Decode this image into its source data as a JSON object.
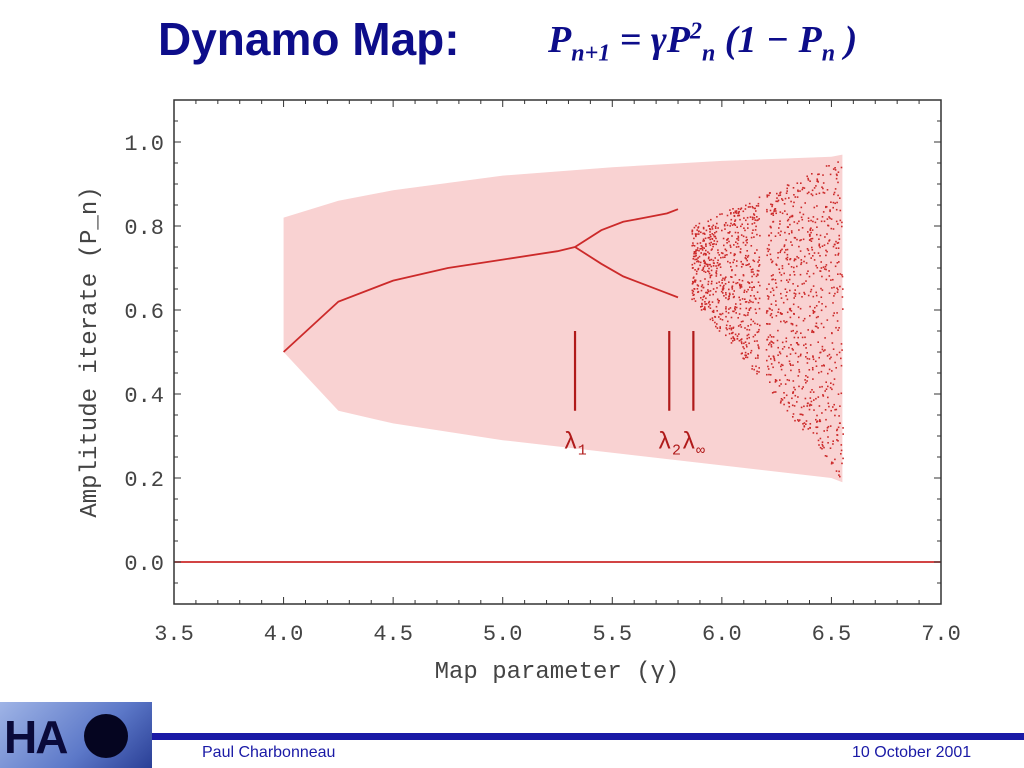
{
  "slide": {
    "title": "Dynamo Map:",
    "formula": {
      "lhs_var": "P",
      "lhs_sub": "n+1",
      "equals": "=",
      "gamma": "γ",
      "rhs_var": "P",
      "rhs_sup": "2",
      "rhs_sub": "n",
      "paren_open": "(1",
      "minus": "−",
      "rhs_var2": "P",
      "rhs_sub2": "n",
      "paren_close": ")"
    },
    "footer": {
      "author": "Paul Charbonneau",
      "date": "10 October 2001",
      "logo_text": "HA"
    }
  },
  "colors": {
    "title": "#0d0d8a",
    "envelope_fill": "#f9d2d2",
    "orbit": "#cc2a2a",
    "footer_bar": "#1a1aa6"
  },
  "chart_data": {
    "type": "scatter",
    "title": "",
    "xlabel": "Map parameter (γ)",
    "ylabel": "Amplitude iterate (P_n)",
    "xlim": [
      3.5,
      7.0
    ],
    "ylim": [
      -0.1,
      1.1
    ],
    "x_ticks": [
      "3.5",
      "4.0",
      "4.5",
      "5.0",
      "5.5",
      "6.0",
      "6.5",
      "7.0"
    ],
    "y_ticks": [
      "0.0",
      "0.2",
      "0.4",
      "0.6",
      "0.8",
      "1.0"
    ],
    "grid": false,
    "series": [
      {
        "kind": "fixed_point_stable",
        "x": [
          4.0,
          4.25,
          4.5,
          4.75,
          5.0,
          5.25,
          5.33
        ],
        "y": [
          0.5,
          0.62,
          0.67,
          0.7,
          0.72,
          0.74,
          0.75
        ]
      },
      {
        "kind": "period_2_upper",
        "x": [
          5.33,
          5.45,
          5.55,
          5.65,
          5.75,
          5.8
        ],
        "y": [
          0.75,
          0.79,
          0.81,
          0.82,
          0.83,
          0.84
        ]
      },
      {
        "kind": "period_2_lower",
        "x": [
          5.33,
          5.45,
          5.55,
          5.65,
          5.75,
          5.8
        ],
        "y": [
          0.75,
          0.71,
          0.68,
          0.66,
          0.64,
          0.63
        ]
      },
      {
        "kind": "trivial_fixed_point",
        "x": [
          3.5,
          7.0
        ],
        "y": [
          0.0,
          0.0
        ]
      }
    ],
    "envelope": {
      "x": [
        4.0,
        4.25,
        4.5,
        5.0,
        5.5,
        6.0,
        6.5,
        6.55
      ],
      "upper": [
        0.82,
        0.86,
        0.885,
        0.92,
        0.94,
        0.955,
        0.965,
        0.97
      ],
      "lower": [
        0.5,
        0.36,
        0.33,
        0.29,
        0.26,
        0.23,
        0.2,
        0.19
      ]
    },
    "chaos_region": {
      "x_start": 5.86,
      "x_end": 6.55
    },
    "markers": [
      {
        "label": "λ",
        "subscript": "1",
        "x": 5.33
      },
      {
        "label": "λ",
        "subscript": "2",
        "x": 5.76
      },
      {
        "label": "λ",
        "subscript": "∞",
        "x": 5.87
      }
    ]
  }
}
